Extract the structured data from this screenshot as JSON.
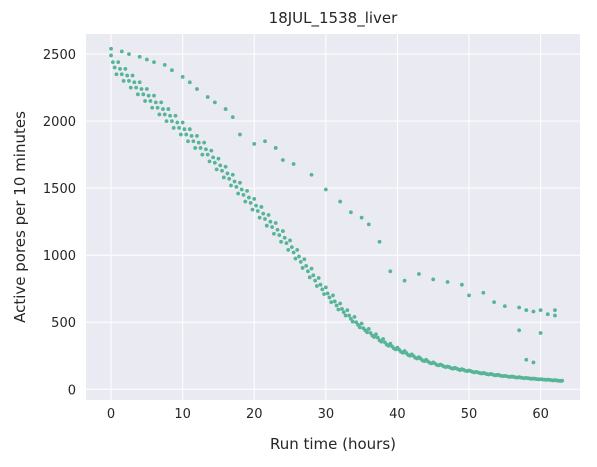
{
  "chart_data": {
    "type": "scatter",
    "title": "18JUL_1538_liver",
    "xlabel": "Run time (hours)",
    "ylabel": "Active pores per 10 minutes",
    "xlim": [
      -3.5,
      65.5
    ],
    "ylim": [
      -80,
      2650
    ],
    "xticks": [
      0,
      10,
      20,
      30,
      40,
      50,
      60
    ],
    "yticks": [
      0,
      500,
      1000,
      1500,
      2000,
      2500
    ],
    "grid": true,
    "legend": "none",
    "colors": {
      "background": "#eaeaf2",
      "grid": "#ffffff",
      "point": "#56b596",
      "text": "#262626"
    },
    "series": [
      {
        "x": [
          0,
          1,
          2,
          3,
          4,
          5,
          6,
          7,
          8,
          9,
          10,
          11,
          12,
          13,
          14,
          15,
          16,
          17,
          18,
          19,
          20,
          21,
          22,
          23,
          24,
          25,
          26,
          27,
          28,
          29,
          30,
          31,
          32,
          33,
          34,
          35,
          36,
          37,
          38,
          39,
          40,
          41,
          42,
          43,
          44,
          45,
          46,
          47,
          48,
          49,
          50,
          51,
          52,
          53,
          54,
          55,
          56,
          57,
          58,
          59,
          60,
          61,
          62,
          63
        ],
        "y": [
          2490,
          2440,
          2390,
          2340,
          2290,
          2240,
          2190,
          2140,
          2090,
          2040,
          1990,
          1940,
          1890,
          1840,
          1780,
          1720,
          1660,
          1600,
          1540,
          1480,
          1420,
          1360,
          1300,
          1240,
          1180,
          1110,
          1040,
          970,
          900,
          830,
          760,
          700,
          640,
          590,
          540,
          490,
          450,
          410,
          375,
          340,
          310,
          285,
          260,
          240,
          220,
          200,
          185,
          170,
          160,
          150,
          140,
          130,
          122,
          115,
          108,
          100,
          95,
          90,
          85,
          80,
          76,
          72,
          68,
          64
        ]
      },
      {
        "x": [
          0.25,
          1.25,
          2.25,
          3.25,
          4.25,
          5.25,
          6.25,
          7.25,
          8.25,
          9.25,
          10.25,
          11.25,
          12.25,
          13.25,
          14.25,
          15.25,
          16.25,
          17.25,
          18.25,
          19.25,
          20.25,
          21.25,
          22.25,
          23.25,
          24.25,
          25.25,
          26.25,
          27.25,
          28.25,
          29.25,
          30.25,
          31.25,
          32.25,
          33.25,
          34.25,
          35.25,
          36.25,
          37.25,
          38.25,
          39.25,
          40.25,
          41.25,
          42.25,
          43.25,
          44.25,
          45.25,
          46.25,
          47.25,
          48.25,
          49.25,
          50.25,
          51.25,
          52.25,
          53.25,
          54.25,
          55.25,
          56.25,
          57.25,
          58.25,
          59.25,
          60.25,
          61.25,
          62.25
        ],
        "y": [
          2440,
          2390,
          2340,
          2290,
          2240,
          2190,
          2140,
          2090,
          2040,
          1990,
          1940,
          1890,
          1840,
          1790,
          1730,
          1670,
          1610,
          1550,
          1490,
          1430,
          1370,
          1310,
          1250,
          1190,
          1130,
          1060,
          990,
          920,
          850,
          780,
          715,
          655,
          600,
          550,
          500,
          455,
          420,
          385,
          350,
          320,
          295,
          270,
          248,
          228,
          208,
          192,
          178,
          165,
          155,
          145,
          135,
          126,
          118,
          111,
          104,
          97,
          92,
          87,
          82,
          78,
          74,
          70,
          66
        ]
      },
      {
        "x": [
          0.5,
          1.5,
          2.5,
          3.5,
          4.5,
          5.5,
          6.5,
          7.5,
          8.5,
          9.5,
          10.5,
          11.5,
          12.5,
          13.5,
          14.5,
          15.5,
          16.5,
          17.5,
          18.5,
          19.5,
          20.5,
          21.5,
          22.5,
          23.5,
          24.5,
          25.5,
          26.5,
          27.5,
          28.5,
          29.5,
          30.5,
          31.5,
          32.5,
          33.5,
          34.5,
          35.5,
          36.5,
          37.5,
          38.5,
          39.5,
          40.5,
          41.5,
          42.5,
          43.5,
          44.5,
          45.5,
          46.5,
          47.5,
          48.5,
          49.5,
          50.5,
          51.5,
          52.5,
          53.5,
          54.5,
          55.5,
          56.5,
          57.5,
          58.5,
          59.5,
          60.5,
          61.5,
          62.5
        ],
        "y": [
          2400,
          2350,
          2300,
          2250,
          2200,
          2150,
          2100,
          2050,
          2000,
          1950,
          1900,
          1850,
          1800,
          1750,
          1690,
          1630,
          1570,
          1510,
          1450,
          1390,
          1330,
          1270,
          1210,
          1150,
          1090,
          1020,
          950,
          880,
          810,
          745,
          685,
          625,
          575,
          525,
          480,
          440,
          400,
          365,
          333,
          305,
          280,
          256,
          235,
          215,
          198,
          182,
          170,
          158,
          148,
          138,
          130,
          121,
          113,
          106,
          100,
          94,
          89,
          84,
          80,
          76,
          72,
          68,
          64
        ]
      },
      {
        "x": [
          0.75,
          1.75,
          2.75,
          3.75,
          4.75,
          5.75,
          6.75,
          7.75,
          8.75,
          9.75,
          10.75,
          11.75,
          12.75,
          13.75,
          14.75,
          15.75,
          16.75,
          17.75,
          18.75,
          19.75,
          20.75,
          21.75,
          22.75,
          23.75,
          24.75,
          25.75,
          26.75,
          27.75,
          28.75,
          29.75,
          30.75,
          31.75,
          32.75,
          33.75,
          34.75,
          35.75,
          36.75,
          37.75,
          38.75,
          39.75,
          40.75,
          41.75,
          42.75,
          43.75,
          44.75,
          45.75,
          46.75,
          47.75,
          48.75,
          49.75,
          50.75,
          51.75,
          52.75,
          53.75,
          54.75,
          55.75,
          56.75,
          57.75,
          58.75,
          59.75,
          60.75,
          61.75,
          62.75
        ],
        "y": [
          2350,
          2300,
          2250,
          2200,
          2150,
          2100,
          2050,
          2000,
          1950,
          1900,
          1850,
          1800,
          1750,
          1700,
          1640,
          1580,
          1520,
          1460,
          1400,
          1340,
          1280,
          1220,
          1160,
          1100,
          1040,
          975,
          905,
          835,
          770,
          710,
          650,
          595,
          550,
          505,
          462,
          425,
          390,
          355,
          325,
          298,
          272,
          250,
          230,
          210,
          193,
          178,
          165,
          153,
          143,
          135,
          126,
          118,
          110,
          104,
          98,
          92,
          87,
          83,
          78,
          74,
          70,
          66,
          62
        ]
      },
      {
        "x": [
          0,
          1.5,
          2.5,
          4,
          5,
          6,
          7.5,
          8.5,
          10,
          11,
          12,
          13.5,
          14.5,
          16,
          17,
          18,
          20,
          21.5,
          23,
          24,
          25.5,
          28,
          30,
          32,
          33.5,
          35,
          36,
          37.5,
          39,
          41,
          43,
          45,
          47,
          49,
          50,
          52,
          53.5,
          55,
          57,
          58,
          59,
          60,
          62
        ],
        "y": [
          2540,
          2520,
          2500,
          2480,
          2460,
          2440,
          2420,
          2380,
          2330,
          2290,
          2240,
          2180,
          2140,
          2090,
          2030,
          1900,
          1830,
          1850,
          1800,
          1710,
          1680,
          1600,
          1490,
          1400,
          1320,
          1280,
          1230,
          1100,
          880,
          810,
          860,
          820,
          800,
          780,
          700,
          720,
          650,
          620,
          610,
          590,
          580,
          590,
          590
        ]
      },
      {
        "x": [
          57,
          58,
          59,
          60,
          61,
          62
        ],
        "y": [
          440,
          220,
          200,
          420,
          560,
          550
        ]
      }
    ]
  }
}
